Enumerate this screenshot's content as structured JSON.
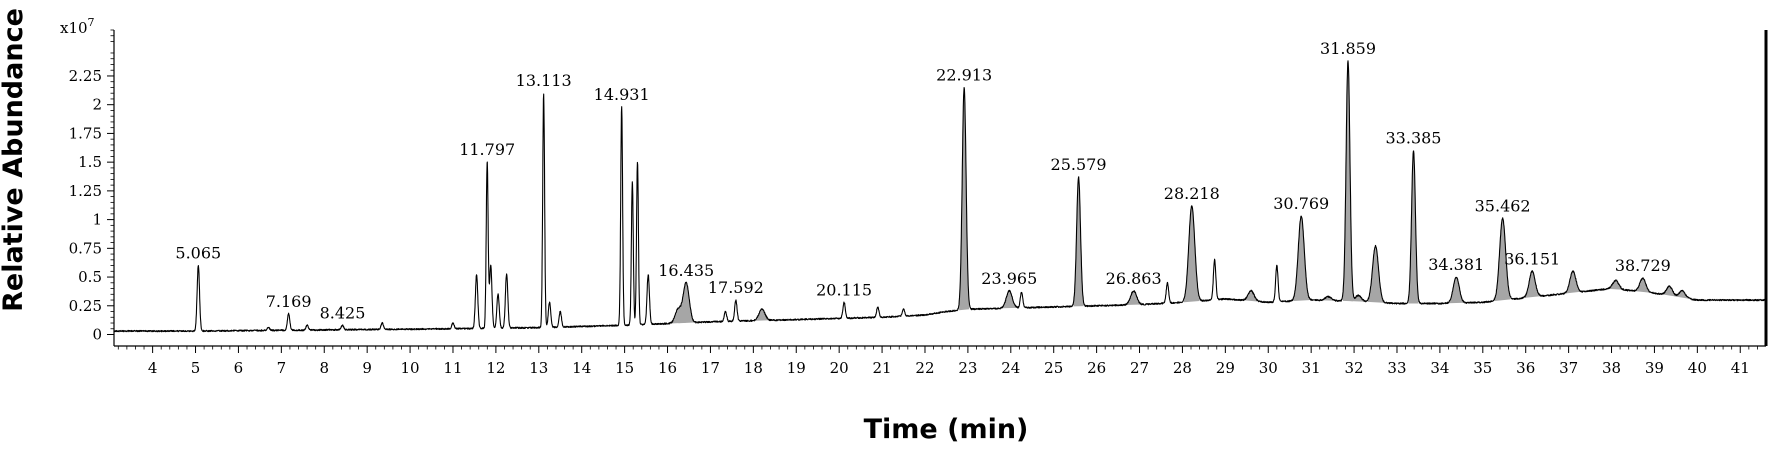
{
  "chart_data": {
    "type": "line",
    "title": "",
    "xlabel": "Time (min)",
    "ylabel": "Relative Abundance",
    "y_exponent_label": "x10",
    "y_exponent_power": "7",
    "xlim": [
      3.1,
      41.6
    ],
    "ylim": [
      -0.1,
      2.65
    ],
    "x_ticks": [
      4,
      5,
      6,
      7,
      8,
      9,
      10,
      11,
      12,
      13,
      14,
      15,
      16,
      17,
      18,
      19,
      20,
      21,
      22,
      23,
      24,
      25,
      26,
      27,
      28,
      29,
      30,
      31,
      32,
      33,
      34,
      35,
      36,
      37,
      38,
      39,
      40,
      41
    ],
    "x_tick_labels": [
      "4",
      "5",
      "6",
      "7",
      "8",
      "9",
      "10",
      "11",
      "12",
      "13",
      "14",
      "15",
      "16",
      "17",
      "18",
      "19",
      "20",
      "21",
      "22",
      "23",
      "24",
      "25",
      "26",
      "27",
      "28",
      "29",
      "30",
      "31",
      "32",
      "33",
      "34",
      "35",
      "36",
      "37",
      "38",
      "39",
      "40",
      "41"
    ],
    "y_ticks": [
      0,
      0.25,
      0.5,
      0.75,
      1,
      1.25,
      1.5,
      1.75,
      2,
      2.25
    ],
    "y_tick_labels": [
      "0",
      "0.25",
      "0.5",
      "0.75",
      "1",
      "1.25",
      "1.5",
      "1.75",
      "2",
      "2.25"
    ],
    "grid": false,
    "baseline": {
      "x": [
        3.1,
        5,
        8,
        11,
        13,
        15,
        17,
        19,
        21,
        22,
        22.5,
        23,
        25,
        27,
        28,
        29,
        30,
        31,
        32,
        33,
        34,
        35,
        36,
        37,
        38,
        39,
        40,
        41.6
      ],
      "y": [
        0.03,
        0.03,
        0.04,
        0.05,
        0.06,
        0.08,
        0.11,
        0.13,
        0.15,
        0.17,
        0.2,
        0.22,
        0.24,
        0.26,
        0.28,
        0.31,
        0.28,
        0.3,
        0.29,
        0.27,
        0.27,
        0.28,
        0.32,
        0.36,
        0.4,
        0.36,
        0.3,
        0.3
      ]
    },
    "peaks": [
      {
        "rt": 5.065,
        "height": 0.6,
        "label": "5.065",
        "shaded": false
      },
      {
        "rt": 6.7,
        "height": 0.06,
        "label": "",
        "shaded": false
      },
      {
        "rt": 7.169,
        "height": 0.18,
        "label": "7.169",
        "shaded": false
      },
      {
        "rt": 7.6,
        "height": 0.08,
        "label": "",
        "shaded": false
      },
      {
        "rt": 8.425,
        "height": 0.08,
        "label": "8.425",
        "shaded": false
      },
      {
        "rt": 9.35,
        "height": 0.1,
        "label": "",
        "shaded": false
      },
      {
        "rt": 11.0,
        "height": 0.1,
        "label": "",
        "shaded": false
      },
      {
        "rt": 11.55,
        "height": 0.52,
        "label": "",
        "shaded": false
      },
      {
        "rt": 11.797,
        "height": 1.5,
        "label": "11.797",
        "shaded": false
      },
      {
        "rt": 11.88,
        "height": 0.6,
        "label": "",
        "shaded": false
      },
      {
        "rt": 12.05,
        "height": 0.35,
        "label": "",
        "shaded": false
      },
      {
        "rt": 12.25,
        "height": 0.53,
        "label": "",
        "shaded": false
      },
      {
        "rt": 13.113,
        "height": 2.1,
        "label": "13.113",
        "shaded": false
      },
      {
        "rt": 13.25,
        "height": 0.28,
        "label": "",
        "shaded": false
      },
      {
        "rt": 13.5,
        "height": 0.2,
        "label": "",
        "shaded": false
      },
      {
        "rt": 14.931,
        "height": 1.98,
        "label": "14.931",
        "shaded": false
      },
      {
        "rt": 15.18,
        "height": 1.33,
        "label": "",
        "shaded": false
      },
      {
        "rt": 15.3,
        "height": 1.5,
        "label": "",
        "shaded": false
      },
      {
        "rt": 15.55,
        "height": 0.52,
        "label": "",
        "shaded": false
      },
      {
        "rt": 16.435,
        "height": 0.45,
        "label": "16.435",
        "shaded": true
      },
      {
        "rt": 16.25,
        "height": 0.22,
        "label": "",
        "shaded": true
      },
      {
        "rt": 17.592,
        "height": 0.3,
        "label": "17.592",
        "shaded": false
      },
      {
        "rt": 17.35,
        "height": 0.2,
        "label": "",
        "shaded": false
      },
      {
        "rt": 18.2,
        "height": 0.22,
        "label": "",
        "shaded": true
      },
      {
        "rt": 20.115,
        "height": 0.28,
        "label": "20.115",
        "shaded": false
      },
      {
        "rt": 20.9,
        "height": 0.24,
        "label": "",
        "shaded": false
      },
      {
        "rt": 21.5,
        "height": 0.22,
        "label": "",
        "shaded": false
      },
      {
        "rt": 22.913,
        "height": 2.15,
        "label": "22.913",
        "shaded": true
      },
      {
        "rt": 23.965,
        "height": 0.38,
        "label": "23.965",
        "shaded": true
      },
      {
        "rt": 24.25,
        "height": 0.37,
        "label": "",
        "shaded": false
      },
      {
        "rt": 25.579,
        "height": 1.37,
        "label": "25.579",
        "shaded": true
      },
      {
        "rt": 26.863,
        "height": 0.38,
        "label": "26.863",
        "shaded": true
      },
      {
        "rt": 27.65,
        "height": 0.45,
        "label": "",
        "shaded": false
      },
      {
        "rt": 28.218,
        "height": 1.12,
        "label": "28.218",
        "shaded": true
      },
      {
        "rt": 28.75,
        "height": 0.65,
        "label": "",
        "shaded": false
      },
      {
        "rt": 29.6,
        "height": 0.38,
        "label": "",
        "shaded": true
      },
      {
        "rt": 30.2,
        "height": 0.6,
        "label": "",
        "shaded": false
      },
      {
        "rt": 30.769,
        "height": 1.03,
        "label": "30.769",
        "shaded": true
      },
      {
        "rt": 31.4,
        "height": 0.33,
        "label": "",
        "shaded": true
      },
      {
        "rt": 31.859,
        "height": 2.38,
        "label": "31.859",
        "shaded": true
      },
      {
        "rt": 32.1,
        "height": 0.34,
        "label": "",
        "shaded": true
      },
      {
        "rt": 32.5,
        "height": 0.77,
        "label": "",
        "shaded": true
      },
      {
        "rt": 33.385,
        "height": 1.6,
        "label": "33.385",
        "shaded": true
      },
      {
        "rt": 34.381,
        "height": 0.5,
        "label": "34.381",
        "shaded": true
      },
      {
        "rt": 35.462,
        "height": 1.01,
        "label": "35.462",
        "shaded": true
      },
      {
        "rt": 36.151,
        "height": 0.55,
        "label": "36.151",
        "shaded": true
      },
      {
        "rt": 37.1,
        "height": 0.55,
        "label": "",
        "shaded": true
      },
      {
        "rt": 38.1,
        "height": 0.47,
        "label": "",
        "shaded": true
      },
      {
        "rt": 38.729,
        "height": 0.49,
        "label": "38.729",
        "shaded": true
      },
      {
        "rt": 39.35,
        "height": 0.42,
        "label": "",
        "shaded": true
      },
      {
        "rt": 39.65,
        "height": 0.38,
        "label": "",
        "shaded": true
      }
    ],
    "colors": {
      "trace": "#000000",
      "shaded_fill": "#a6a6a6",
      "axis": "#000000"
    }
  }
}
